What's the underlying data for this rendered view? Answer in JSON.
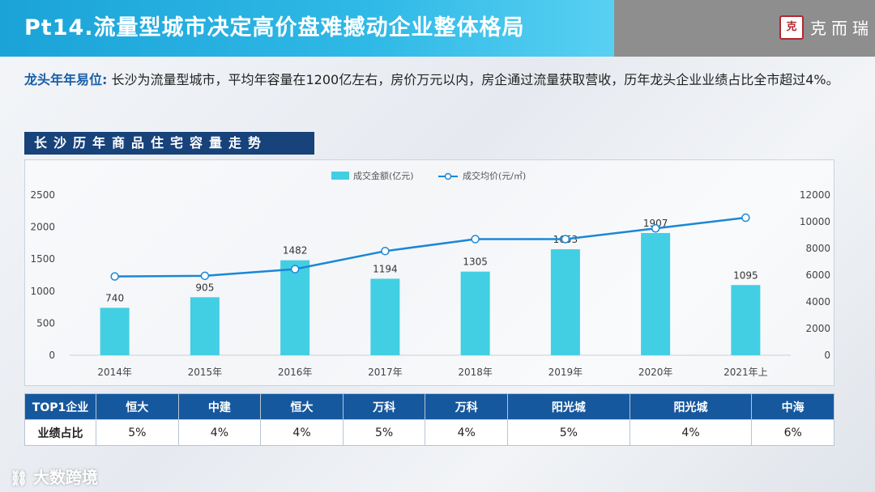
{
  "header": {
    "title": "Pt14.流量型城市决定高价盘难撼动企业整体格局",
    "brand_seal": "克",
    "brand_name": "克而瑞"
  },
  "intro": {
    "highlight": "龙头年年易位:",
    "text": "长沙为流量型城市，平均年容量在1200亿左右，房价万元以内，房企通过流量获取营收，历年龙头企业业绩占比全市超过4%。"
  },
  "section_title": "长沙历年商品住宅容量走势",
  "colors": {
    "bar": "#42cfe3",
    "line": "#1a87d6",
    "header": "#1ba3d8",
    "table_head": "#16589e"
  },
  "chart_data": {
    "type": "bar",
    "categories": [
      "2014年",
      "2015年",
      "2016年",
      "2017年",
      "2018年",
      "2019年",
      "2020年",
      "2021年上"
    ],
    "series": [
      {
        "name": "成交金额(亿元)",
        "type": "bar",
        "axis": "left",
        "values": [
          740,
          905,
          1482,
          1194,
          1305,
          1653,
          1907,
          1095
        ]
      },
      {
        "name": "成交均价(元/㎡)",
        "type": "line",
        "axis": "right",
        "values": [
          5900,
          5950,
          6450,
          7800,
          8700,
          8700,
          9500,
          10300
        ]
      }
    ],
    "y_left": {
      "min": 0,
      "max": 2500,
      "ticks": [
        0,
        500,
        1000,
        1500,
        2000,
        2500
      ]
    },
    "y_right": {
      "min": 0,
      "max": 12000,
      "ticks": [
        0,
        2000,
        4000,
        6000,
        8000,
        10000,
        12000
      ]
    },
    "legend_position": "top-center",
    "grid": false
  },
  "table": {
    "row1_label": "TOP1企业",
    "companies": [
      "恒大",
      "中建",
      "恒大",
      "万科",
      "万科",
      "阳光城",
      "阳光城",
      "中海"
    ],
    "row2_label": "业绩占比",
    "shares": [
      "5%",
      "4%",
      "4%",
      "5%",
      "4%",
      "5%",
      "4%",
      "6%"
    ]
  },
  "watermark": {
    "icon": "link-icon",
    "text": "大数跨境"
  }
}
